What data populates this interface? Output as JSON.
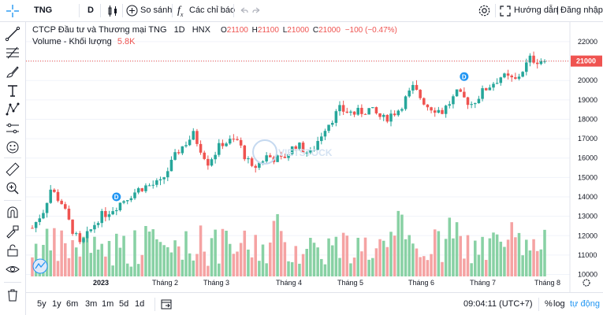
{
  "toolbar": {
    "symbol": "TNG",
    "interval": "D",
    "compare_label": "So sánh",
    "indicators_label": "Các chỉ báo",
    "guide_label": "Hướng dẫn",
    "login_label": "Đăng nhập",
    "separator": "|"
  },
  "legend": {
    "company": "CTCP Đầu tư và Thương mại TNG",
    "interval": "1D",
    "exchange": "HNX",
    "open_label": "O",
    "open": "21100",
    "high_label": "H",
    "high": "21100",
    "low_label": "L",
    "low": "21000",
    "close_label": "C",
    "close": "21000",
    "change": "−100 (−0.47%)",
    "volume_label": "Volume - Khối lượng",
    "volume_value": "5.8K"
  },
  "bottom": {
    "ranges": [
      "5y",
      "1y",
      "6m",
      "3m",
      "1m",
      "5d",
      "1d"
    ],
    "clock": "09:04:11 (UTC+7)",
    "percent": "%",
    "log": "log",
    "auto": "tự động"
  },
  "colors": {
    "up": "#26a69a",
    "down": "#ef5350",
    "vol_up": "#88d1a4",
    "vol_down": "#f5a3a3",
    "accent": "#2196f3"
  },
  "icons": [
    "crosshair-icon",
    "trend-line-icon",
    "fib-icon",
    "brush-icon",
    "text-icon",
    "pattern-icon",
    "measure-icon",
    "emoji-icon",
    "ruler-icon",
    "zoom-in-icon",
    "magnet-icon",
    "lock-draw-icon",
    "lock-icon",
    "eye-icon",
    "trash-icon"
  ],
  "chart_data": {
    "type": "candlestick",
    "ylim": [
      9900,
      22200
    ],
    "y_ticks": [
      22000,
      21000,
      20000,
      19000,
      18000,
      17000,
      16000,
      15000,
      14000,
      13000,
      12000,
      11000,
      10000
    ],
    "last_price": "21000",
    "x_labels": [
      "2023",
      "Tháng 2",
      "Tháng 3",
      "Tháng 4",
      "Tháng 5",
      "Tháng 6",
      "Tháng 7",
      "Tháng 8"
    ],
    "dividend_marker": "D",
    "watermark": "VIETSTOCK",
    "price_path": [
      [
        0,
        12400
      ],
      [
        3,
        13300
      ],
      [
        5,
        14400
      ],
      [
        8,
        13700
      ],
      [
        10,
        12700
      ],
      [
        13,
        11500
      ],
      [
        15,
        12000
      ],
      [
        18,
        12900
      ],
      [
        22,
        13400
      ],
      [
        26,
        14000
      ],
      [
        30,
        14500
      ],
      [
        35,
        14700
      ],
      [
        40,
        16400
      ],
      [
        44,
        17200
      ],
      [
        48,
        15800
      ],
      [
        52,
        16800
      ],
      [
        56,
        16900
      ],
      [
        60,
        15400
      ],
      [
        64,
        16100
      ],
      [
        68,
        15900
      ],
      [
        72,
        16700
      ],
      [
        76,
        16200
      ],
      [
        80,
        17600
      ],
      [
        84,
        18500
      ],
      [
        88,
        18300
      ],
      [
        92,
        18500
      ],
      [
        96,
        18000
      ],
      [
        100,
        18500
      ],
      [
        104,
        19600
      ],
      [
        108,
        18700
      ],
      [
        112,
        18400
      ],
      [
        116,
        19300
      ],
      [
        120,
        18800
      ],
      [
        124,
        19600
      ],
      [
        128,
        20200
      ],
      [
        132,
        20000
      ],
      [
        136,
        21100
      ],
      [
        140,
        21000
      ]
    ]
  }
}
